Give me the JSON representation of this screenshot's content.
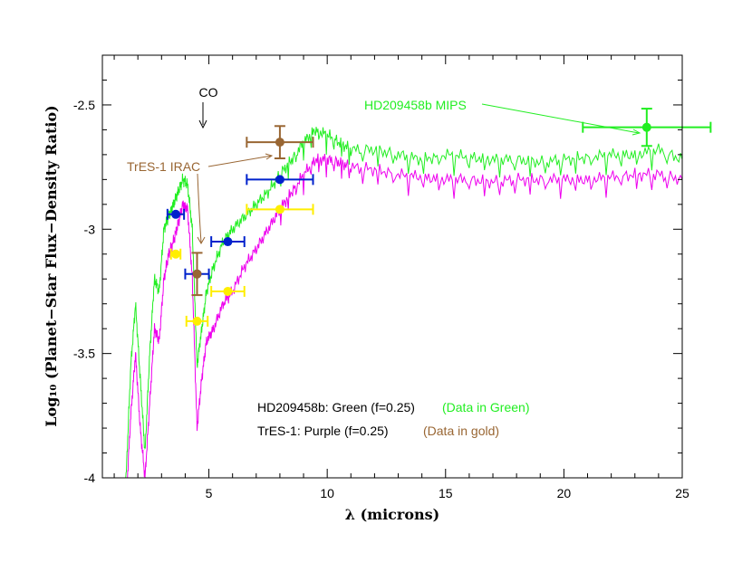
{
  "chart_data": {
    "type": "line",
    "xlabel": "λ (microns)",
    "ylabel": "Log₁₀ (Planet−Star Flux−Density Ratio)",
    "xlim": [
      0.5,
      25
    ],
    "ylim": [
      -4,
      -2.3
    ],
    "x_ticks": [
      5,
      10,
      15,
      20,
      25
    ],
    "y_ticks": [
      -4,
      -3.5,
      -3,
      -2.5
    ],
    "x_tick_labels": [
      "5",
      "10",
      "15",
      "20",
      "25"
    ],
    "y_tick_labels": [
      "-4",
      "-3.5",
      "-3",
      "-2.5"
    ],
    "colors": {
      "green": "#22ee22",
      "magenta": "#ee00ee",
      "blue": "#0022cc",
      "gold": "#ffee00",
      "brown": "#996633",
      "black": "#000000"
    },
    "series": [
      {
        "name": "HD209458b: Green (f=0.25)",
        "color": "#22ee22",
        "x": [
          1.0,
          1.5,
          1.7,
          1.9,
          2.1,
          2.3,
          2.5,
          2.7,
          2.9,
          3.1,
          3.3,
          3.5,
          3.7,
          3.9,
          4.1,
          4.3,
          4.5,
          4.7,
          4.9,
          5.2,
          5.6,
          6.0,
          6.5,
          7.0,
          7.5,
          8.0,
          8.5,
          9.0,
          9.5,
          10.0,
          10.5,
          11.0,
          12.0,
          13.0,
          14.0,
          15.0,
          16.0,
          17.0,
          18.0,
          19.0,
          20.0,
          21.0,
          22.0,
          23.0,
          24.0,
          25.0
        ],
        "y": [
          -4.2,
          -4.0,
          -3.55,
          -3.3,
          -3.6,
          -3.9,
          -3.5,
          -3.2,
          -3.25,
          -3.0,
          -2.95,
          -2.9,
          -2.85,
          -2.8,
          -2.82,
          -3.0,
          -3.55,
          -3.4,
          -3.25,
          -3.15,
          -3.05,
          -3.0,
          -2.95,
          -2.9,
          -2.85,
          -2.78,
          -2.72,
          -2.65,
          -2.6,
          -2.62,
          -2.65,
          -2.68,
          -2.68,
          -2.7,
          -2.72,
          -2.7,
          -2.71,
          -2.72,
          -2.72,
          -2.73,
          -2.72,
          -2.71,
          -2.7,
          -2.7,
          -2.68,
          -2.72
        ]
      },
      {
        "name": "TrES-1: Purple (f=0.25)",
        "color": "#ee00ee",
        "x": [
          1.0,
          1.5,
          1.7,
          1.9,
          2.1,
          2.3,
          2.5,
          2.7,
          2.9,
          3.1,
          3.3,
          3.5,
          3.7,
          3.9,
          4.1,
          4.3,
          4.5,
          4.7,
          4.9,
          5.2,
          5.6,
          6.0,
          6.5,
          7.0,
          7.5,
          8.0,
          8.5,
          9.0,
          9.5,
          10.0,
          10.5,
          11.0,
          12.0,
          13.0,
          14.0,
          15.0,
          16.0,
          17.0,
          18.0,
          19.0,
          20.0,
          21.0,
          22.0,
          23.0,
          24.0,
          25.0
        ],
        "y": [
          -4.3,
          -4.1,
          -3.75,
          -3.5,
          -3.8,
          -4.0,
          -3.7,
          -3.4,
          -3.45,
          -3.2,
          -3.1,
          -3.05,
          -2.98,
          -2.9,
          -2.92,
          -3.2,
          -3.8,
          -3.6,
          -3.45,
          -3.4,
          -3.3,
          -3.25,
          -3.15,
          -3.08,
          -3.0,
          -2.92,
          -2.85,
          -2.78,
          -2.72,
          -2.72,
          -2.73,
          -2.75,
          -2.76,
          -2.78,
          -2.79,
          -2.8,
          -2.8,
          -2.81,
          -2.8,
          -2.8,
          -2.8,
          -2.8,
          -2.79,
          -2.78,
          -2.78,
          -2.8
        ]
      }
    ],
    "data_points": [
      {
        "set": "HD209458b",
        "color": "#0022cc",
        "x": 3.6,
        "y": -2.94,
        "xerr": 0.35,
        "yerr": 0.0
      },
      {
        "set": "HD209458b",
        "color": "#0022cc",
        "x": 4.5,
        "y": -3.18,
        "xerr": 0.5,
        "yerr": 0.0
      },
      {
        "set": "HD209458b",
        "color": "#0022cc",
        "x": 5.8,
        "y": -3.05,
        "xerr": 0.7,
        "yerr": 0.0
      },
      {
        "set": "HD209458b",
        "color": "#0022cc",
        "x": 8.0,
        "y": -2.8,
        "xerr": 1.4,
        "yerr": 0.0
      },
      {
        "set": "HD209458b",
        "color": "#22ee22",
        "x": 23.5,
        "y": -2.59,
        "xerr": 2.7,
        "yerr": 0.075
      },
      {
        "set": "TrES-1",
        "color": "#ffee00",
        "x": 3.6,
        "y": -3.1,
        "xerr": 0.2,
        "yerr": 0.0
      },
      {
        "set": "TrES-1",
        "color": "#ffee00",
        "x": 4.5,
        "y": -3.37,
        "xerr": 0.45,
        "yerr": 0.0
      },
      {
        "set": "TrES-1",
        "color": "#ffee00",
        "x": 5.8,
        "y": -3.25,
        "xerr": 0.7,
        "yerr": 0.0
      },
      {
        "set": "TrES-1",
        "color": "#ffee00",
        "x": 8.0,
        "y": -2.92,
        "xerr": 1.4,
        "yerr": 0.0
      },
      {
        "set": "TrES-1",
        "color": "#996633",
        "x": 4.5,
        "y": -3.18,
        "xerr": 0.0,
        "yerr": 0.085
      },
      {
        "set": "TrES-1",
        "color": "#996633",
        "x": 8.0,
        "y": -2.65,
        "xerr": 1.4,
        "yerr": 0.065
      }
    ],
    "annotations": {
      "co": "CO",
      "tres_irac": "TrES-1 IRAC",
      "mips": "HD209458b MIPS",
      "legend_hd_black": "HD209458b: Green (f=0.25)",
      "legend_hd_green": "(Data in Green)",
      "legend_tres_black": "TrES-1: Purple (f=0.25)",
      "legend_tres_brown": "(Data in gold)"
    }
  }
}
